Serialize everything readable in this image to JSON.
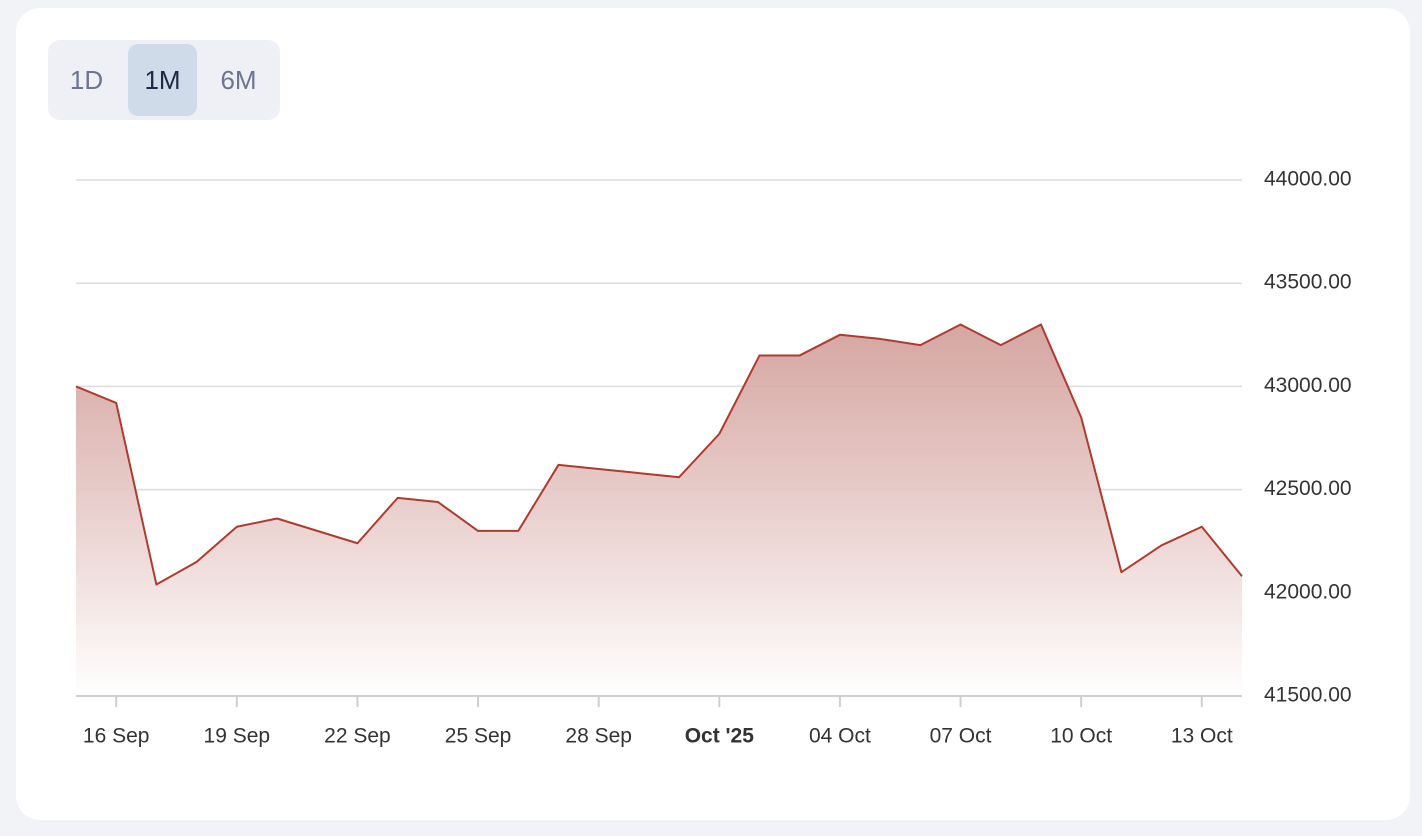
{
  "range_buttons": {
    "labels": [
      "1D",
      "1M",
      "6M"
    ],
    "active_index": 1
  },
  "chart_data": {
    "type": "area",
    "x": [
      "2025-09-15",
      "2025-09-16",
      "2025-09-17",
      "2025-09-18",
      "2025-09-19",
      "2025-09-20",
      "2025-09-21",
      "2025-09-22",
      "2025-09-23",
      "2025-09-24",
      "2025-09-25",
      "2025-09-26",
      "2025-09-27",
      "2025-09-28",
      "2025-09-29",
      "2025-09-30",
      "2025-10-01",
      "2025-10-02",
      "2025-10-03",
      "2025-10-04",
      "2025-10-05",
      "2025-10-06",
      "2025-10-07",
      "2025-10-08",
      "2025-10-09",
      "2025-10-10",
      "2025-10-11",
      "2025-10-12",
      "2025-10-13",
      "2025-10-14"
    ],
    "values": [
      43000,
      42920,
      42040,
      42150,
      42320,
      42360,
      42300,
      42240,
      42460,
      42440,
      42300,
      42300,
      42620,
      42600,
      42580,
      42560,
      42770,
      43150,
      43150,
      43250,
      43230,
      43200,
      43300,
      43200,
      43300,
      42850,
      42100,
      42230,
      42320,
      42080
    ],
    "color": "#b03a2e",
    "xlim": [
      "2025-09-15",
      "2025-10-14"
    ],
    "xticks": [
      {
        "value": "2025-09-16",
        "label": "16 Sep"
      },
      {
        "value": "2025-09-19",
        "label": "19 Sep"
      },
      {
        "value": "2025-09-22",
        "label": "22 Sep"
      },
      {
        "value": "2025-09-25",
        "label": "25 Sep"
      },
      {
        "value": "2025-09-28",
        "label": "28 Sep"
      },
      {
        "value": "2025-10-01",
        "label": "Oct '25"
      },
      {
        "value": "2025-10-04",
        "label": "04 Oct"
      },
      {
        "value": "2025-10-07",
        "label": "07 Oct"
      },
      {
        "value": "2025-10-10",
        "label": "10 Oct"
      },
      {
        "value": "2025-10-13",
        "label": "13 Oct"
      }
    ],
    "ylim": [
      41500,
      44000
    ],
    "yticks": [
      {
        "value": 41500,
        "label": "41500.00"
      },
      {
        "value": 42000,
        "label": "42000.00"
      },
      {
        "value": 42500,
        "label": "42500.00"
      },
      {
        "value": 43000,
        "label": "43000.00"
      },
      {
        "value": 43500,
        "label": "43500.00"
      },
      {
        "value": 44000,
        "label": "44000.00"
      }
    ],
    "grid": true
  }
}
